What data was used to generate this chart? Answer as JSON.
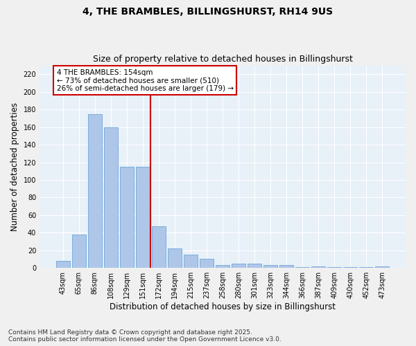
{
  "title": "4, THE BRAMBLES, BILLINGSHURST, RH14 9US",
  "subtitle": "Size of property relative to detached houses in Billingshurst",
  "xlabel": "Distribution of detached houses by size in Billingshurst",
  "ylabel": "Number of detached properties",
  "categories": [
    "43sqm",
    "65sqm",
    "86sqm",
    "108sqm",
    "129sqm",
    "151sqm",
    "172sqm",
    "194sqm",
    "215sqm",
    "237sqm",
    "258sqm",
    "280sqm",
    "301sqm",
    "323sqm",
    "344sqm",
    "366sqm",
    "387sqm",
    "409sqm",
    "430sqm",
    "452sqm",
    "473sqm"
  ],
  "values": [
    8,
    38,
    175,
    160,
    115,
    115,
    47,
    22,
    15,
    10,
    3,
    5,
    5,
    3,
    3,
    1,
    2,
    1,
    1,
    1,
    2
  ],
  "bar_color": "#aec6e8",
  "bar_edge_color": "#5a9bd5",
  "reference_line_index": 5,
  "reference_label": "4 THE BRAMBLES: 154sqm",
  "annotation_line1": "← 73% of detached houses are smaller (510)",
  "annotation_line2": "26% of semi-detached houses are larger (179) →",
  "ref_line_color": "#cc0000",
  "ylim": [
    0,
    230
  ],
  "yticks": [
    0,
    20,
    40,
    60,
    80,
    100,
    120,
    140,
    160,
    180,
    200,
    220
  ],
  "footer_line1": "Contains HM Land Registry data © Crown copyright and database right 2025.",
  "footer_line2": "Contains public sector information licensed under the Open Government Licence v3.0.",
  "background_color": "#e8f0f8",
  "grid_color": "#ffffff",
  "fig_background": "#f0f0f0",
  "title_fontsize": 10,
  "subtitle_fontsize": 9,
  "axis_label_fontsize": 8.5,
  "tick_fontsize": 7,
  "annotation_fontsize": 7.5,
  "footer_fontsize": 6.5
}
